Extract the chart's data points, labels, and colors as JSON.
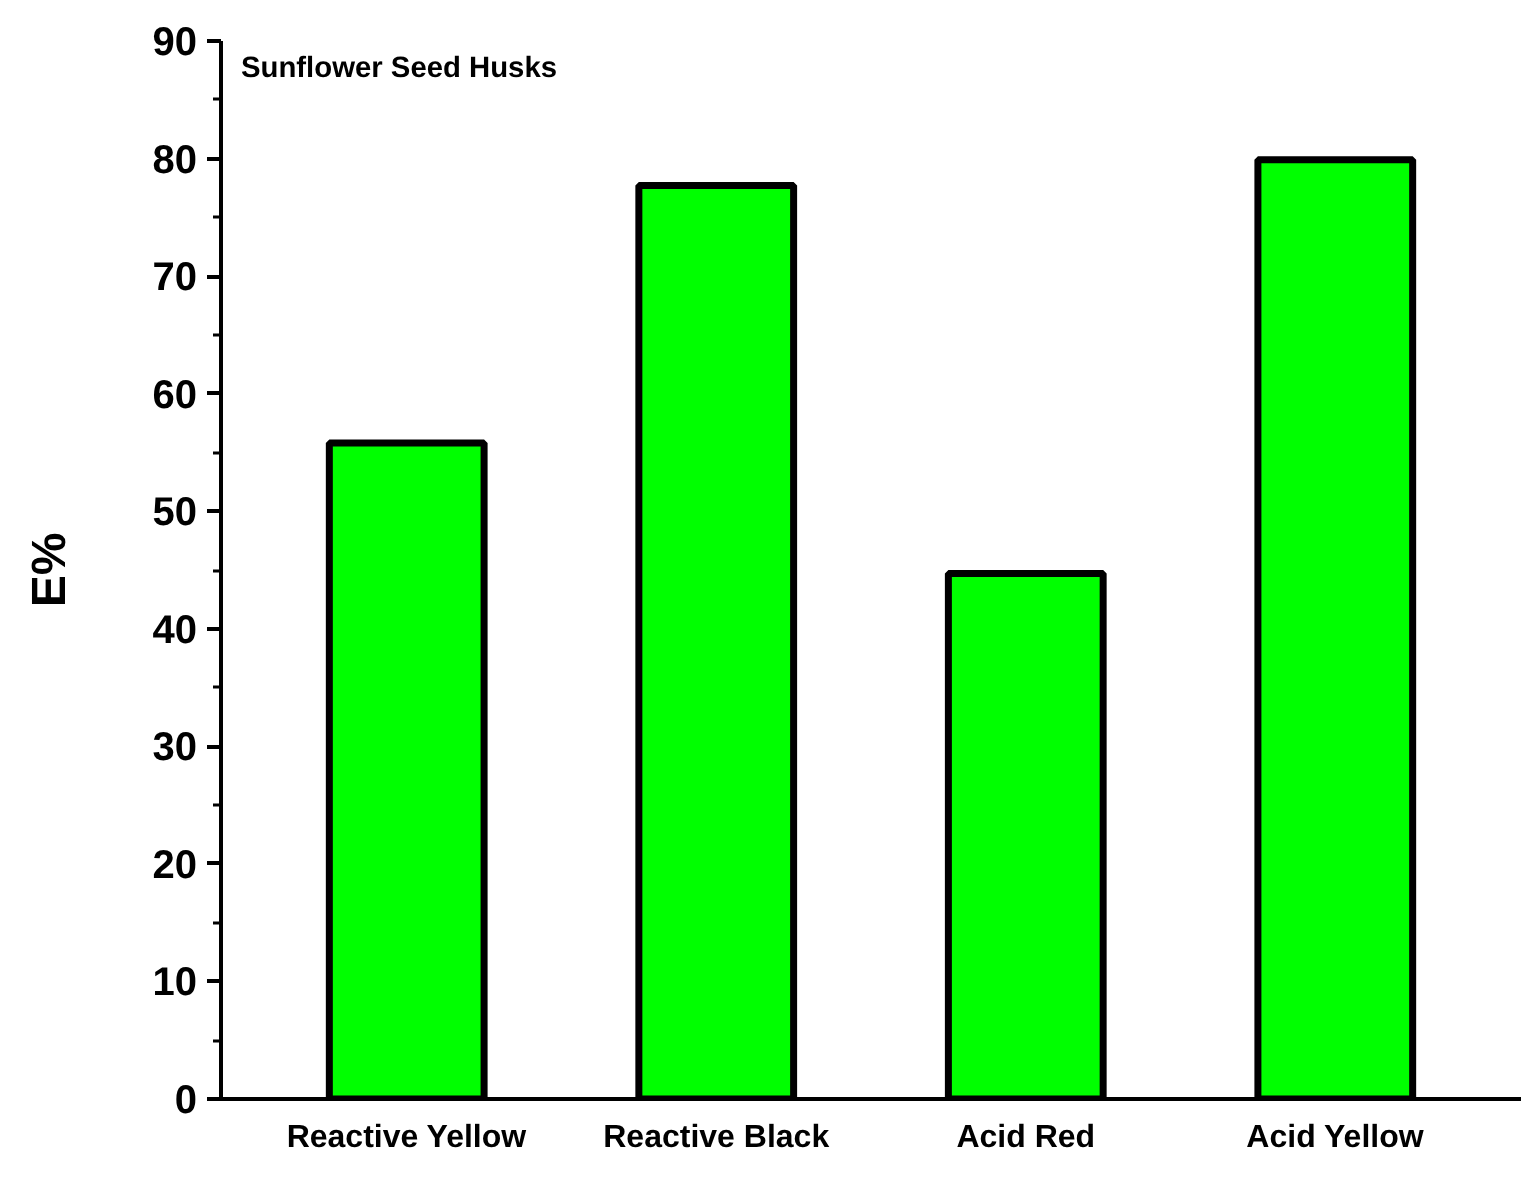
{
  "chart_data": {
    "type": "bar",
    "title": "Sunflower Seed Husks",
    "ylabel": "E%",
    "categories": [
      "Reactive Yellow",
      "Reactive Black",
      "Acid Red",
      "Acid Yellow"
    ],
    "values": [
      55.8,
      77.7,
      44.7,
      79.9
    ],
    "color": "#00ff00",
    "ylim": [
      0,
      90
    ],
    "yticks": [
      0,
      10,
      20,
      30,
      40,
      50,
      60,
      70,
      80,
      90
    ],
    "grid": false
  }
}
